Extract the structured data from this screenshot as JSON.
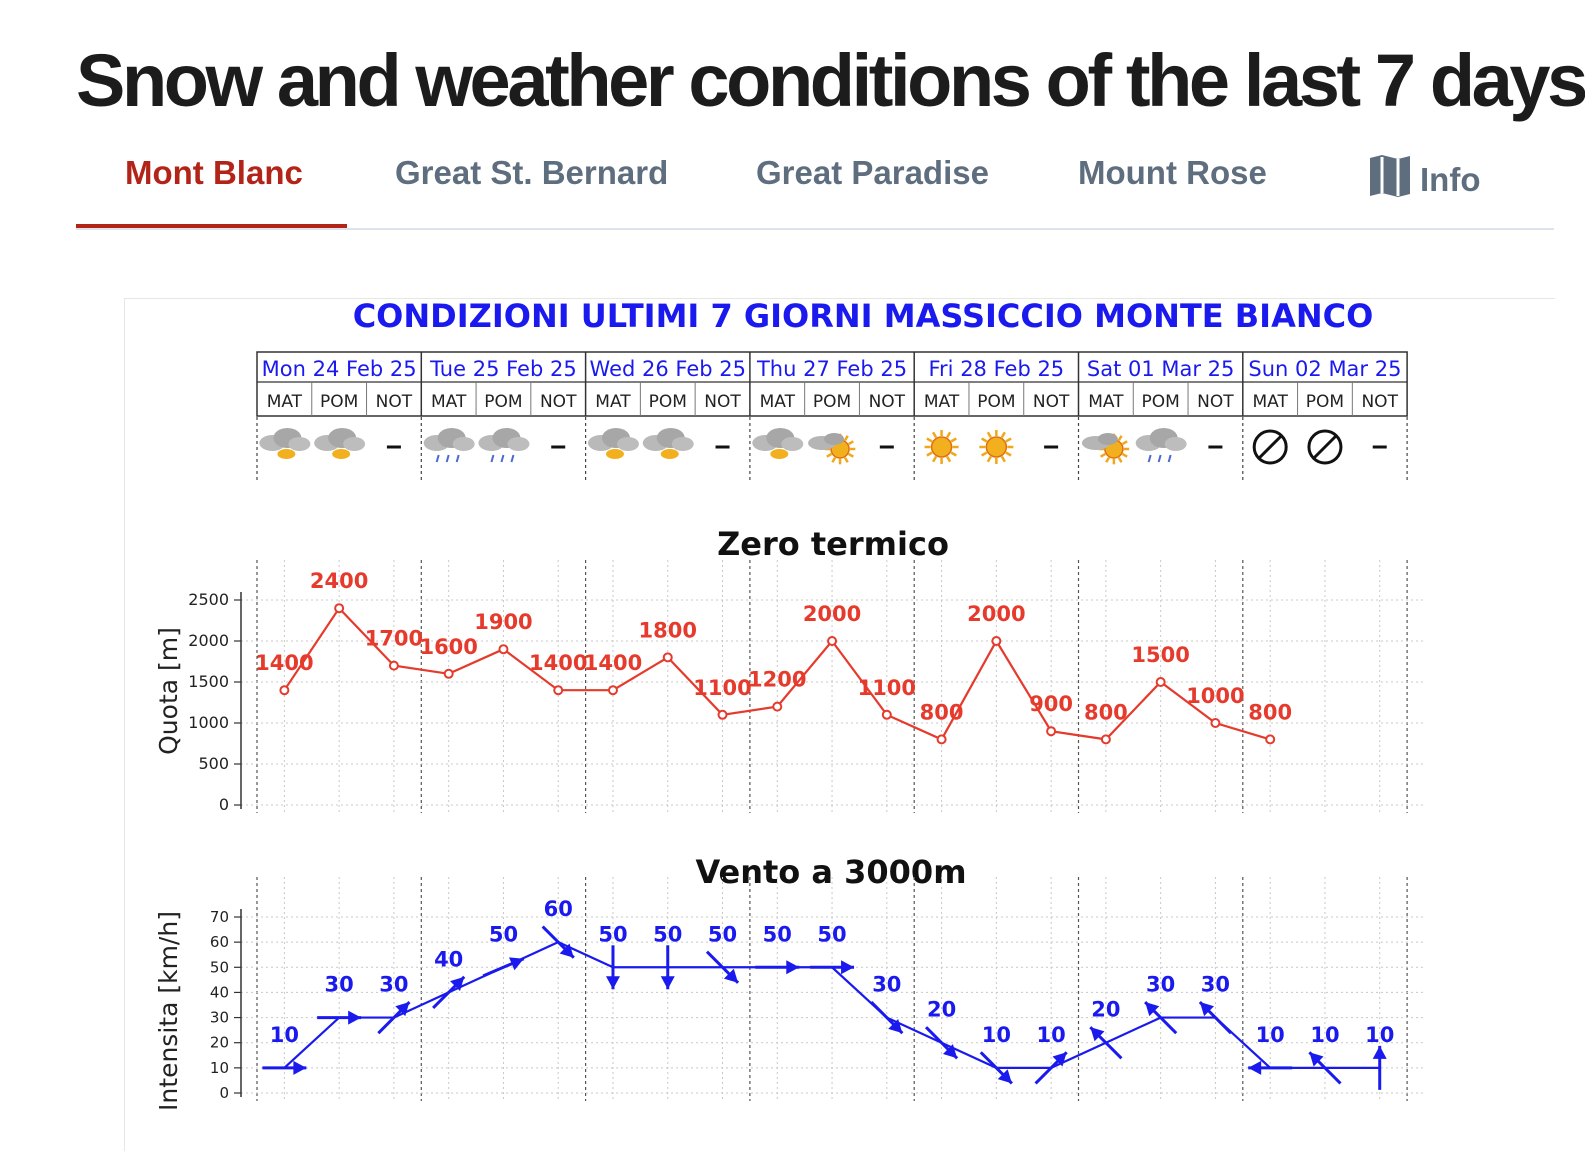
{
  "page": {
    "title": "Snow and weather conditions of the last 7 days"
  },
  "tabs": [
    {
      "label": "Mont Blanc",
      "active": true
    },
    {
      "label": "Great St. Bernard",
      "active": false
    },
    {
      "label": "Great Paradise",
      "active": false
    },
    {
      "label": "Mount Rose",
      "active": false
    },
    {
      "label": "Info",
      "icon": "map-icon",
      "active": false
    }
  ],
  "colors": {
    "accent": "#b22418",
    "tab_text": "#5e6e7e",
    "chart_blue": "#1a1aee",
    "chart_red": "#e53a2c"
  },
  "chart_panel": {
    "header_title": "CONDIZIONI ULTIMI 7 GIORNI MASSICCIO MONTE BIANCO",
    "days": [
      "Mon 24 Feb 25",
      "Tue 25 Feb 25",
      "Wed 26 Feb 25",
      "Thu 27 Feb 25",
      "Fri 28 Feb 25",
      "Sat 01 Mar 25",
      "Sun 02 Mar 25"
    ],
    "periods": [
      "MAT",
      "POM",
      "NOT"
    ],
    "weather_icons": [
      [
        "cloudy-sun-icon",
        "cloudy-sun-icon",
        "dash"
      ],
      [
        "cloudy-rain-icon",
        "cloudy-rain-icon",
        "dash"
      ],
      [
        "cloudy-sun-icon",
        "cloudy-sun-icon",
        "dash"
      ],
      [
        "cloudy-sun-icon",
        "partly-sunny-icon",
        "dash"
      ],
      [
        "sunny-icon",
        "sunny-icon",
        "dash"
      ],
      [
        "partly-sunny-icon",
        "cloudy-rain-icon",
        "dash"
      ],
      [
        "no-data-icon",
        "no-data-icon",
        "dash"
      ]
    ]
  },
  "chart_data": [
    {
      "type": "line",
      "title": "Zero termico",
      "ylabel": "Quota [m]",
      "xlabel": "",
      "ylim": [
        0,
        2500
      ],
      "yticks": [
        0,
        500,
        1000,
        1500,
        2000,
        2500
      ],
      "grid": true,
      "categories": [
        "Mon MAT",
        "Mon POM",
        "Mon NOT",
        "Tue MAT",
        "Tue POM",
        "Tue NOT",
        "Wed MAT",
        "Wed POM",
        "Wed NOT",
        "Thu MAT",
        "Thu POM",
        "Thu NOT",
        "Fri MAT",
        "Fri POM",
        "Fri NOT",
        "Sat MAT",
        "Sat POM",
        "Sat NOT",
        "Sun MAT"
      ],
      "values": [
        1400,
        2400,
        1700,
        1600,
        1900,
        1400,
        1400,
        1800,
        1100,
        1200,
        2000,
        1100,
        800,
        2000,
        900,
        800,
        1500,
        1000,
        800
      ],
      "color": "#e53a2c"
    },
    {
      "type": "line",
      "title": "Vento a 3000m",
      "ylabel": "Intensita [km/h]",
      "xlabel": "",
      "ylim": [
        0,
        70
      ],
      "yticks": [
        0,
        10,
        20,
        30,
        40,
        50,
        60,
        70
      ],
      "grid": true,
      "categories": [
        "Mon MAT",
        "Mon POM",
        "Mon NOT",
        "Tue MAT",
        "Tue POM",
        "Tue NOT",
        "Wed MAT",
        "Wed POM",
        "Wed NOT",
        "Thu MAT",
        "Thu POM",
        "Thu NOT",
        "Fri MAT",
        "Fri POM",
        "Fri NOT",
        "Sat MAT",
        "Sat POM",
        "Sat NOT",
        "Sun MAT",
        "Sun POM",
        "Sun NOT"
      ],
      "values": [
        10,
        30,
        30,
        40,
        50,
        60,
        50,
        50,
        50,
        50,
        50,
        30,
        20,
        10,
        10,
        20,
        30,
        30,
        10,
        10,
        10
      ],
      "wind_direction_deg": [
        90,
        90,
        45,
        45,
        67,
        135,
        180,
        180,
        135,
        90,
        90,
        135,
        135,
        135,
        45,
        315,
        315,
        315,
        270,
        315,
        0
      ],
      "color": "#1a1aee"
    }
  ]
}
